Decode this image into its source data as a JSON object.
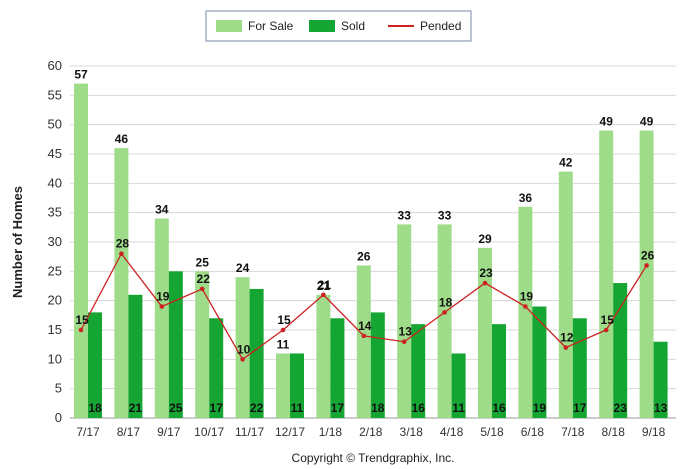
{
  "chart_data": {
    "type": "bar",
    "title": "",
    "xlabel": "",
    "ylabel": "Number of Homes",
    "ylim": [
      0,
      60
    ],
    "yticks": [
      0,
      5,
      10,
      15,
      20,
      25,
      30,
      35,
      40,
      45,
      50,
      55,
      60
    ],
    "grid": true,
    "legend_position": "top-center",
    "categories": [
      "7/17",
      "8/17",
      "9/17",
      "10/17",
      "11/17",
      "12/17",
      "1/18",
      "2/18",
      "3/18",
      "4/18",
      "5/18",
      "6/18",
      "7/18",
      "8/18",
      "9/18"
    ],
    "series": [
      {
        "name": "For Sale",
        "type": "bar",
        "color": "#9edc8a",
        "values": [
          57,
          46,
          34,
          25,
          24,
          11,
          21,
          26,
          33,
          33,
          29,
          36,
          42,
          49,
          49
        ]
      },
      {
        "name": "Sold",
        "type": "bar",
        "color": "#15a532",
        "values": [
          18,
          21,
          25,
          17,
          22,
          11,
          17,
          18,
          16,
          11,
          16,
          19,
          17,
          23,
          13
        ]
      },
      {
        "name": "Pended",
        "type": "line",
        "color": "#cc2222",
        "values": [
          15,
          28,
          19,
          22,
          10,
          15,
          21,
          14,
          13,
          18,
          23,
          19,
          12,
          15,
          26
        ]
      }
    ],
    "footer": "Copyright © Trendgraphix, Inc."
  }
}
